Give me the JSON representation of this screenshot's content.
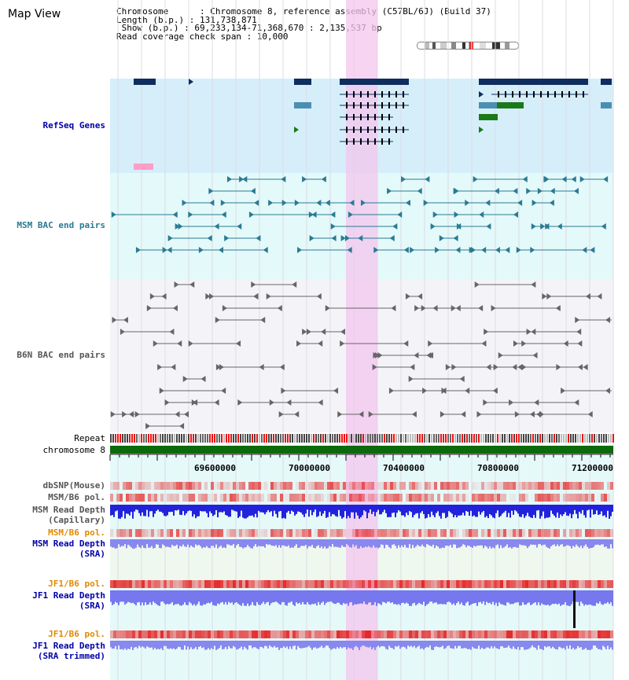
{
  "title": "Map View",
  "info": {
    "chromosome_label": "Chromosome      : Chromosome 8, reference assembly (C57BL/6J) (Build 37)",
    "length_label": "Length (b.p.) : 131,738,871",
    "show_label": " Show (b.p.) : 69,233,134-71,368,670 : 2,135,537 bp",
    "coverage_label": "Read coverage check span : 10,000"
  },
  "tracks": {
    "refseq": "RefSeq Genes",
    "msm_bac": "MSM BAC end pairs",
    "b6n_bac": "B6N BAC end pairs",
    "repeat": "Repeat",
    "chromosome": "chromosome 8",
    "dbsnp": "dbSNP(Mouse)",
    "msm_b6_pol_1": "MSM/B6 pol.",
    "msm_depth_cap_1": "MSM Read Depth",
    "msm_depth_cap_2": "(Capillary)",
    "msm_b6_pol_2": "MSM/B6 pol.",
    "msm_depth_sra_1": "MSM Read Depth",
    "msm_depth_sra_2": "(SRA)",
    "jf1_b6_pol_1": "JF1/B6 pol.",
    "jf1_depth_sra_1": "JF1 Read Depth",
    "jf1_depth_sra_2": "(SRA)",
    "jf1_b6_pol_2": "JF1/B6 pol.",
    "jf1_depth_trim_1": "JF1 Read Depth",
    "jf1_depth_trim_2": "(SRA trimmed)"
  },
  "ruler": {
    "ticks": [
      "69600000",
      "70000000",
      "70400000",
      "70800000",
      "71200000"
    ]
  },
  "colors": {
    "refseq_bg": "#d6eefa",
    "bac_msm_bg": "#e4f9f9",
    "bac_b6n_bg": "#f4f4f8",
    "highlight": "#f7d7f2",
    "gene_dark": "#0f2d5e",
    "gene_teal": "#4b8fb0",
    "gene_green": "#1a7a1a",
    "msm_color": "#2a7a94",
    "b6n_color": "#666666",
    "track_blue_label": "#0000aa",
    "track_gray_label": "#444444",
    "track_orange_label": "#e08a00"
  }
}
